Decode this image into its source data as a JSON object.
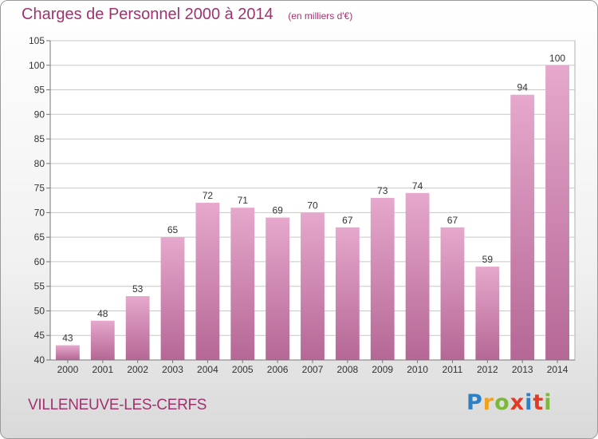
{
  "title": "Charges de Personnel 2000 à 2014",
  "unit": "(en milliers d'€)",
  "commune": "VILLENEUVE-LES-CERFS",
  "brand": {
    "letters": [
      "P",
      "r",
      "o",
      "x",
      "i",
      "t",
      "i"
    ],
    "colors": [
      "#2f7fc4",
      "#f0a21c",
      "#7cb83a",
      "#e23a24",
      "#2f7fc4",
      "#e23a24",
      "#7cb83a"
    ]
  },
  "colors": {
    "accent": "#a0336f",
    "bar_top": "#e6a8cc",
    "bar_bottom": "#b56795",
    "grid": "#c8c8c8"
  },
  "chart_data": {
    "type": "bar",
    "categories": [
      "2000",
      "2001",
      "2002",
      "2003",
      "2004",
      "2005",
      "2006",
      "2007",
      "2008",
      "2009",
      "2010",
      "2011",
      "2012",
      "2013",
      "2014"
    ],
    "values": [
      43,
      48,
      53,
      65,
      72,
      71,
      69,
      70,
      67,
      73,
      74,
      67,
      59,
      94,
      100
    ],
    "ylim": [
      40,
      105
    ],
    "yticks": [
      40,
      45,
      50,
      55,
      60,
      65,
      70,
      75,
      80,
      85,
      90,
      95,
      100,
      105
    ],
    "grid": true,
    "data_labels": true
  }
}
